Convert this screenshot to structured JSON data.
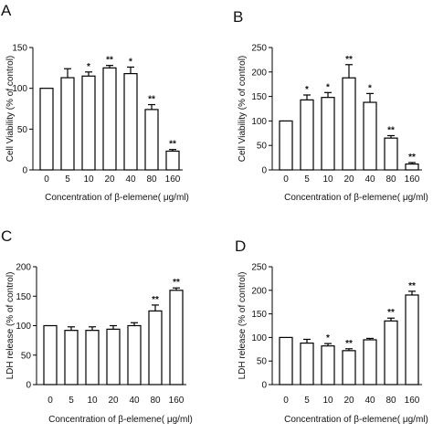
{
  "figure": {
    "panels": [
      {
        "letter": "A",
        "ylabel": "Cell Viability (% of control)",
        "xlabel": "Concentration of β-elemene( μg/ml)"
      },
      {
        "letter": "B",
        "ylabel": "Cell Viability (% of control)",
        "xlabel": "Concentration of β-elemene( μg/ml)"
      },
      {
        "letter": "C",
        "ylabel": "LDH release (% of control)",
        "xlabel": "Concentration of β-elemene( μg/ml)"
      },
      {
        "letter": "D",
        "ylabel": "LDH release (% of control)",
        "xlabel": "Concentration of β-elemene( μg/ml)"
      }
    ]
  },
  "chart_data": [
    {
      "type": "bar",
      "panel": "A",
      "title": "",
      "xlabel": "Concentration of β-elemene( μg/ml)",
      "ylabel": "Cell Viability (% of control)",
      "categories": [
        "0",
        "5",
        "10",
        "20",
        "40",
        "80",
        "160"
      ],
      "values": [
        100,
        113,
        115,
        125,
        118,
        74,
        23
      ],
      "errors": [
        0,
        11,
        5,
        3,
        8,
        6,
        2
      ],
      "significance": [
        "",
        "",
        "*",
        "**",
        "*",
        "**",
        "**"
      ],
      "ylim": [
        0,
        150
      ],
      "yticks": [
        0,
        50,
        100,
        150
      ],
      "grid": false,
      "legend": "none",
      "bar_color": "#ffffff",
      "edge_color": "#000000"
    },
    {
      "type": "bar",
      "panel": "B",
      "title": "",
      "xlabel": "Concentration of β-elemene( μg/ml)",
      "ylabel": "Cell Viability (% of control)",
      "categories": [
        "0",
        "5",
        "10",
        "20",
        "40",
        "80",
        "160"
      ],
      "values": [
        100,
        143,
        148,
        188,
        138,
        65,
        12
      ],
      "errors": [
        0,
        10,
        10,
        27,
        18,
        5,
        3
      ],
      "significance": [
        "",
        "*",
        "*",
        "**",
        "*",
        "**",
        "**"
      ],
      "ylim": [
        0,
        250
      ],
      "yticks": [
        0,
        50,
        100,
        150,
        200,
        250
      ],
      "grid": false,
      "legend": "none",
      "bar_color": "#ffffff",
      "edge_color": "#000000"
    },
    {
      "type": "bar",
      "panel": "C",
      "title": "",
      "xlabel": "Concentration of β-elemene( μg/ml)",
      "ylabel": "LDH release (% of control)",
      "categories": [
        "0",
        "5",
        "10",
        "20",
        "40",
        "80",
        "160"
      ],
      "values": [
        100,
        92,
        92,
        94,
        100,
        125,
        160
      ],
      "errors": [
        0,
        6,
        6,
        6,
        5,
        10,
        4
      ],
      "significance": [
        "",
        "",
        "",
        "",
        "",
        "**",
        "**"
      ],
      "ylim": [
        0,
        200
      ],
      "yticks": [
        0,
        50,
        100,
        150,
        200
      ],
      "grid": false,
      "legend": "none",
      "bar_color": "#ffffff",
      "edge_color": "#000000"
    },
    {
      "type": "bar",
      "panel": "D",
      "title": "",
      "xlabel": "Concentration of β-elemene( μg/ml)",
      "ylabel": "LDH release (% of control)",
      "categories": [
        "0",
        "5",
        "10",
        "20",
        "40",
        "80",
        "160"
      ],
      "values": [
        100,
        88,
        82,
        72,
        95,
        135,
        190
      ],
      "errors": [
        0,
        8,
        5,
        4,
        3,
        6,
        8
      ],
      "significance": [
        "",
        "",
        "*",
        "**",
        "",
        "**",
        "**"
      ],
      "ylim": [
        0,
        250
      ],
      "yticks": [
        0,
        50,
        100,
        150,
        200,
        250
      ],
      "grid": false,
      "legend": "none",
      "bar_color": "#ffffff",
      "edge_color": "#000000"
    }
  ]
}
